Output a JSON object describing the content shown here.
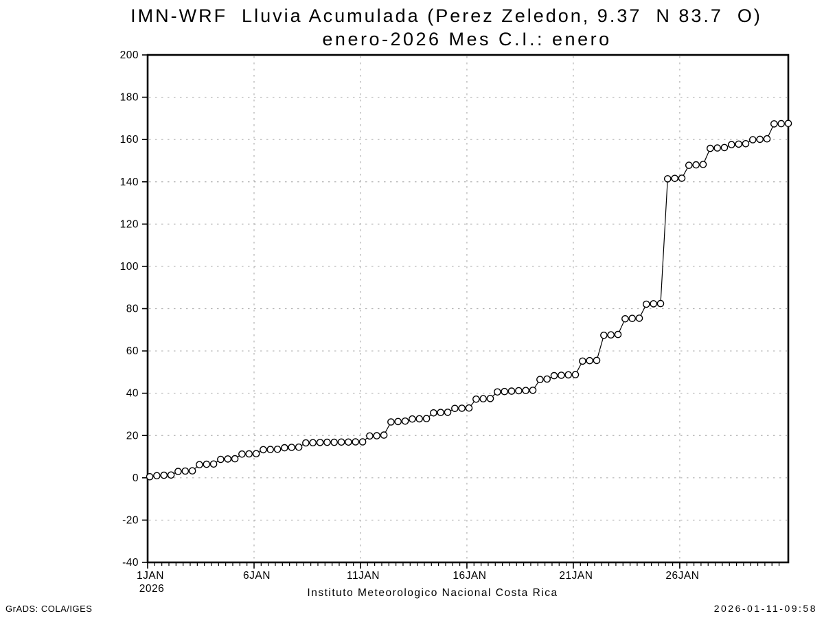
{
  "title": {
    "line1": "IMN-WRF  Lluvia Acumulada (Perez Zeledon, 9.37  N 83.7  O)",
    "line2": "enero-2026 Mes C.I.: enero"
  },
  "footer": {
    "x_caption": "Instituto Meteorologico Nacional Costa Rica",
    "credit": "GrADS: COLA/IGES",
    "timestamp": "2026-01-11-09:58"
  },
  "colors": {
    "line": "#000000",
    "marker_fill": "#ffffff",
    "grid": "#b0b0b0",
    "frame": "#000000",
    "background": "#ffffff"
  },
  "chart_data": {
    "type": "line",
    "title": "IMN-WRF  Lluvia Acumulada (Perez Zeledon, 9.37  N 83.7  O)",
    "subtitle": "enero-2026 Mes C.I.: enero",
    "xlabel": "Instituto Meteorologico Nacional Costa Rica",
    "ylabel": "",
    "grid": true,
    "legend": "none",
    "marker": "open-circle",
    "ylim": [
      -40,
      200
    ],
    "y_ticks": [
      200,
      180,
      160,
      140,
      120,
      100,
      80,
      60,
      40,
      20,
      0,
      -20,
      -40
    ],
    "x_axis": {
      "unit": "day-of-january-2026",
      "days_span": 30.1,
      "minor_tick_step_days": 0.3333,
      "ticks": [
        {
          "day": 0,
          "label": "1JAN",
          "sublabel": "2026"
        },
        {
          "day": 5,
          "label": "6JAN"
        },
        {
          "day": 10,
          "label": "11JAN"
        },
        {
          "day": 15,
          "label": "16JAN"
        },
        {
          "day": 20,
          "label": "21JAN"
        },
        {
          "day": 25,
          "label": "26JAN"
        }
      ]
    },
    "series": [
      {
        "name": "lluvia-acumulada-mm",
        "x_start_day": 0.1,
        "x_step_days": 0.33333,
        "values": [
          0.5,
          1.0,
          1.2,
          1.3,
          3.0,
          3.2,
          3.3,
          6.2,
          6.4,
          6.5,
          8.7,
          8.9,
          9.0,
          11.2,
          11.3,
          11.4,
          13.3,
          13.4,
          13.5,
          14.2,
          14.4,
          14.5,
          16.5,
          16.6,
          16.7,
          16.8,
          16.8,
          16.9,
          16.9,
          17.0,
          17.0,
          19.8,
          19.9,
          20.2,
          26.4,
          26.6,
          26.8,
          27.8,
          27.9,
          28.0,
          30.7,
          30.9,
          31.0,
          32.8,
          32.9,
          33.0,
          37.2,
          37.4,
          37.5,
          40.6,
          40.8,
          41.0,
          41.2,
          41.3,
          41.4,
          46.5,
          46.7,
          48.3,
          48.5,
          48.7,
          48.8,
          55.2,
          55.4,
          55.5,
          67.4,
          67.6,
          67.8,
          75.2,
          75.4,
          75.5,
          82.1,
          82.3,
          82.4,
          141.4,
          141.6,
          141.7,
          147.8,
          148.0,
          148.2,
          155.8,
          156.0,
          156.2,
          157.6,
          157.8,
          158.0,
          159.9,
          160.1,
          160.3,
          167.4,
          167.5,
          167.6
        ]
      }
    ]
  }
}
